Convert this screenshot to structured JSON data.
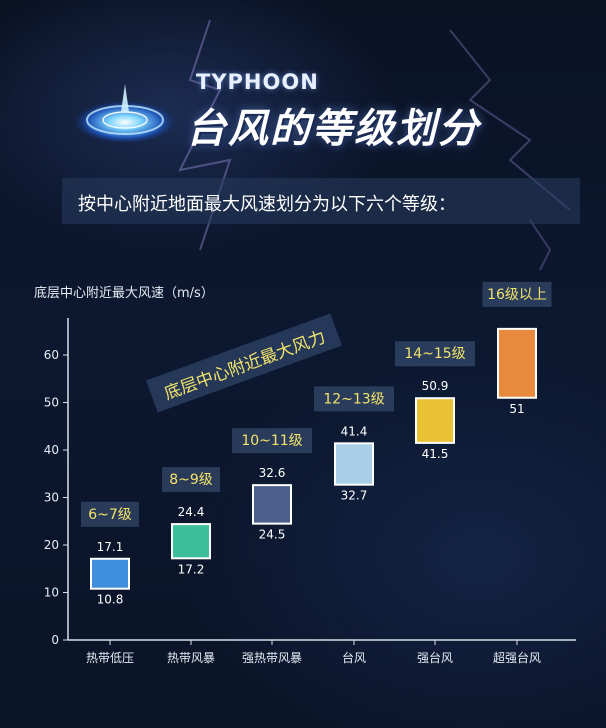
{
  "header": {
    "typhoon_word": "TYPHOON",
    "title": "台风的等级划分",
    "subtitle": "按中心附近地面最大风速划分为以下六个等级："
  },
  "chart_data": {
    "type": "bar",
    "ylabel": "底层中心附近最大风速（m/s）",
    "ylim": [
      0,
      70
    ],
    "yticks": [
      0,
      10,
      20,
      30,
      40,
      50,
      60
    ],
    "annotation": "底层中心附近最大风力",
    "categories": [
      "热带低压",
      "热带风暴",
      "强热带风暴",
      "台风",
      "强台风",
      "超强台风"
    ],
    "bars": [
      {
        "category": "热带低压",
        "grade": "6~7级",
        "low": 10.8,
        "high": 17.1,
        "low_label": "10.8",
        "high_label": "17.1",
        "color": "#3f8fdc"
      },
      {
        "category": "热带风暴",
        "grade": "8~9级",
        "low": 17.2,
        "high": 24.4,
        "low_label": "17.2",
        "high_label": "24.4",
        "color": "#3cbf9a"
      },
      {
        "category": "强热带风暴",
        "grade": "10~11级",
        "low": 24.5,
        "high": 32.6,
        "low_label": "24.5",
        "high_label": "32.6",
        "color": "#4a5f8c"
      },
      {
        "category": "台风",
        "grade": "12~13级",
        "low": 32.7,
        "high": 41.4,
        "low_label": "32.7",
        "high_label": "41.4",
        "color": "#a9cfe6"
      },
      {
        "category": "强台风",
        "grade": "14~15级",
        "low": 41.5,
        "high": 50.9,
        "low_label": "41.5",
        "high_label": "50.9",
        "color": "#e8c234"
      },
      {
        "category": "超强台风",
        "grade": "16级以上",
        "low": 51,
        "high": 65.5,
        "low_label": "51",
        "high_label": "",
        "color": "#e88a3e"
      }
    ],
    "grade_label_color": "#f1e36a",
    "grid": false
  }
}
